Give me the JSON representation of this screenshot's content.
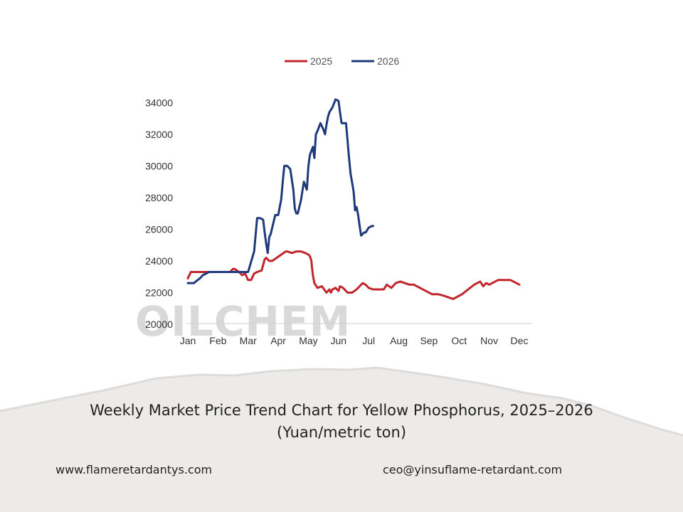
{
  "chart_data": {
    "type": "line",
    "title": "",
    "xlabel": "",
    "ylabel": "",
    "ylim": [
      20000,
      35000
    ],
    "yticks": [
      20000,
      22000,
      24000,
      26000,
      28000,
      30000,
      32000,
      34000
    ],
    "x_domain": [
      0,
      11
    ],
    "months": [
      "Jan",
      "Feb",
      "Mar",
      "Apr",
      "May",
      "Jun",
      "Jul",
      "Aug",
      "Sep",
      "Oct",
      "Nov",
      "Dec"
    ],
    "grid": false,
    "legend_position": "top-center",
    "series": [
      {
        "name": "2025",
        "color": "#c0272d",
        "x": [
          0,
          0.1,
          0.3,
          0.5,
          0.8,
          1.0,
          1.2,
          1.4,
          1.5,
          1.55,
          1.7,
          1.8,
          1.9,
          2.0,
          2.1,
          2.2,
          2.3,
          2.45,
          2.55,
          2.6,
          2.7,
          2.8,
          2.95,
          3.1,
          3.25,
          3.3,
          3.45,
          3.6,
          3.75,
          3.9,
          4.0,
          4.05,
          4.1,
          4.12,
          4.15,
          4.2,
          4.3,
          4.45,
          4.6,
          4.7,
          4.75,
          4.8,
          4.9,
          5.0,
          5.05,
          5.15,
          5.3,
          5.45,
          5.6,
          5.7,
          5.8,
          5.9,
          6.0,
          6.15,
          6.3,
          6.5,
          6.6,
          6.75,
          6.9,
          7.05,
          7.2,
          7.35,
          7.5,
          7.7,
          7.9,
          8.1,
          8.3,
          8.5,
          8.8,
          9.0,
          9.1,
          9.3,
          9.5,
          9.7,
          9.8,
          9.9,
          10.0,
          10.1,
          10.3,
          10.5,
          10.7,
          10.9,
          11.0
        ],
        "values": [
          22900,
          23300,
          23300,
          23300,
          23300,
          23300,
          23300,
          23300,
          23500,
          23500,
          23300,
          23100,
          23200,
          22800,
          22800,
          23200,
          23300,
          23400,
          24100,
          24200,
          24000,
          24000,
          24200,
          24400,
          24600,
          24600,
          24500,
          24600,
          24600,
          24500,
          24400,
          24300,
          24000,
          23600,
          23100,
          22600,
          22300,
          22400,
          22000,
          22200,
          22000,
          22200,
          22300,
          22100,
          22400,
          22300,
          22000,
          22000,
          22200,
          22400,
          22600,
          22500,
          22300,
          22200,
          22200,
          22200,
          22500,
          22300,
          22600,
          22700,
          22600,
          22500,
          22500,
          22300,
          22100,
          21900,
          21900,
          21800,
          21600,
          21800,
          21900,
          22200,
          22500,
          22700,
          22400,
          22600,
          22500,
          22600,
          22800,
          22800,
          22800,
          22600,
          22500
        ]
      },
      {
        "name": "2026",
        "color": "#1f3a7a",
        "x": [
          0,
          0.2,
          0.4,
          0.5,
          0.7,
          0.9,
          1.2,
          1.5,
          1.8,
          2.0,
          2.2,
          2.3,
          2.4,
          2.5,
          2.55,
          2.6,
          2.65,
          2.7,
          2.75,
          2.8,
          2.9,
          3.0,
          3.1,
          3.15,
          3.2,
          3.3,
          3.4,
          3.5,
          3.55,
          3.6,
          3.65,
          3.7,
          3.75,
          3.85,
          3.95,
          4.0,
          4.05,
          4.15,
          4.2,
          4.25,
          4.3,
          4.4,
          4.5,
          4.55,
          4.6,
          4.65,
          4.7,
          4.8,
          4.9,
          5.0,
          5.05,
          5.1,
          5.15,
          5.25,
          5.35,
          5.4,
          5.5,
          5.55,
          5.6,
          5.65,
          5.7,
          5.75,
          5.8,
          5.85,
          5.9,
          6.0,
          6.1,
          6.15
        ],
        "values": [
          22600,
          22600,
          22900,
          23100,
          23300,
          23300,
          23300,
          23300,
          23300,
          23300,
          24600,
          26700,
          26700,
          26600,
          25800,
          25100,
          24500,
          25500,
          25700,
          26100,
          26900,
          26900,
          27900,
          29000,
          30000,
          30000,
          29800,
          28500,
          27300,
          27000,
          27000,
          27400,
          27800,
          29000,
          28500,
          30000,
          30700,
          31200,
          30500,
          32000,
          32200,
          32700,
          32300,
          32000,
          32600,
          33100,
          33400,
          33700,
          34200,
          34100,
          33400,
          32700,
          32700,
          32700,
          30500,
          29500,
          28400,
          27200,
          27400,
          26900,
          26200,
          25600,
          25700,
          25800,
          25800,
          26100,
          26200,
          26200
        ]
      }
    ],
    "watermark": "OILCHEM"
  },
  "caption": "Weekly Market Price Trend Chart for Yellow Phosphorus, 2025–2026 (Yuan/metric ton)",
  "footer": {
    "website": "www.flameretardantys.com",
    "email": "ceo@yinsuflame-retardant.com"
  }
}
